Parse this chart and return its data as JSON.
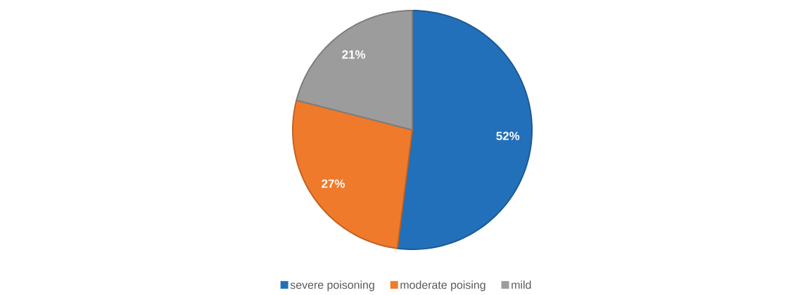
{
  "chart_data": {
    "type": "pie",
    "categories": [
      "severe poisoning",
      "moderate poising",
      "mild"
    ],
    "values": [
      52,
      27,
      21
    ],
    "colors": [
      "#2370ba",
      "#f07a2b",
      "#9c9c9c"
    ],
    "value_labels": [
      "52%",
      "27%",
      "21%"
    ],
    "legend": "bottom"
  }
}
